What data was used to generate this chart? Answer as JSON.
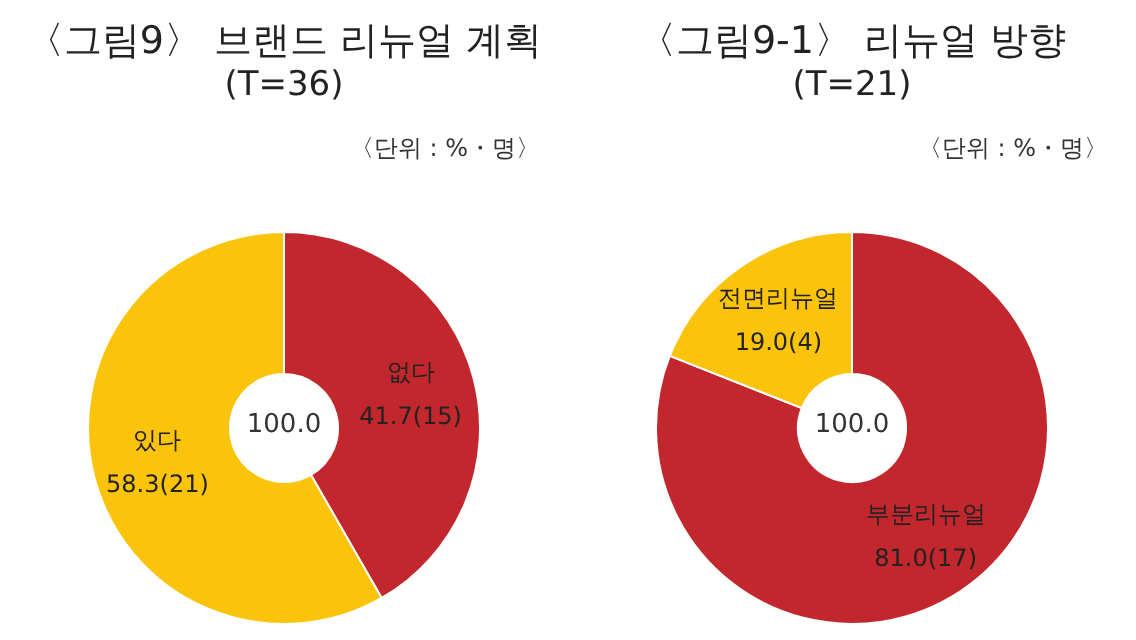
{
  "chart_data": [
    {
      "type": "donut",
      "title": "〈그림9〉 브랜드 리뉴얼 계획",
      "subtitle": "(T=36)",
      "annotations": [
        "〈단위 : %・명〉",
        "100.0"
      ],
      "categories": [
        "없다",
        "있다"
      ],
      "values": [
        41.7,
        58.3
      ],
      "value_labels": [
        "41.7(15)",
        "58.3(21)"
      ],
      "colors": [
        "#c1272d",
        "#fcc30b"
      ]
    },
    {
      "type": "donut",
      "title": "〈그림9-1〉 리뉴얼 방향",
      "subtitle": "(T=21)",
      "annotations": [
        "〈단위 : %・명〉",
        "100.0"
      ],
      "categories": [
        "부분리뉴얼",
        "전면리뉴얼"
      ],
      "values": [
        81.0,
        19.0
      ],
      "value_labels": [
        "81.0(17)",
        "19.0(4)"
      ],
      "colors": [
        "#c1272d",
        "#fcc30b"
      ]
    }
  ]
}
